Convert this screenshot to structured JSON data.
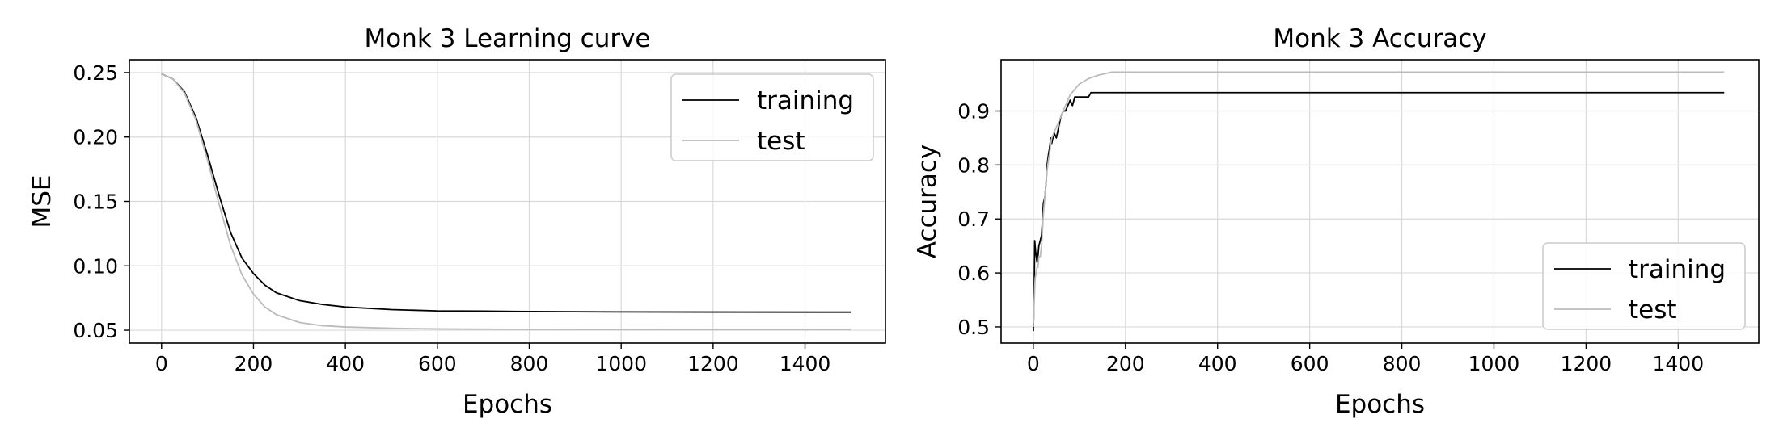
{
  "chart_data": [
    {
      "type": "line",
      "title": "Monk 3 Learning curve",
      "xlabel": "Epochs",
      "ylabel": "MSE",
      "xlim": [
        -70,
        1575
      ],
      "ylim": [
        0.04,
        0.26
      ],
      "xticks": [
        0,
        200,
        400,
        600,
        800,
        1000,
        1200,
        1400
      ],
      "yticks": [
        0.05,
        0.1,
        0.15,
        0.2,
        0.25
      ],
      "ytick_labels": [
        "0.05",
        "0.10",
        "0.15",
        "0.20",
        "0.25"
      ],
      "grid": true,
      "legend": "upper right",
      "series": [
        {
          "name": "training",
          "color": "#000000",
          "x": [
            0,
            25,
            50,
            75,
            100,
            125,
            150,
            175,
            200,
            225,
            250,
            300,
            350,
            400,
            500,
            600,
            700,
            800,
            1000,
            1200,
            1500
          ],
          "y": [
            0.249,
            0.245,
            0.235,
            0.215,
            0.186,
            0.155,
            0.126,
            0.106,
            0.094,
            0.085,
            0.079,
            0.073,
            0.07,
            0.068,
            0.066,
            0.065,
            0.0648,
            0.0645,
            0.0642,
            0.0641,
            0.064
          ]
        },
        {
          "name": "test",
          "color": "#bbbbbb",
          "x": [
            0,
            25,
            50,
            75,
            100,
            125,
            150,
            175,
            200,
            225,
            250,
            300,
            350,
            400,
            500,
            600,
            700,
            800,
            1000,
            1200,
            1500
          ],
          "y": [
            0.249,
            0.245,
            0.234,
            0.213,
            0.182,
            0.148,
            0.116,
            0.093,
            0.078,
            0.068,
            0.062,
            0.056,
            0.0535,
            0.0525,
            0.0515,
            0.051,
            0.0508,
            0.0507,
            0.0506,
            0.0505,
            0.0505
          ]
        }
      ]
    },
    {
      "type": "line",
      "title": "Monk 3 Accuracy",
      "xlabel": "Epochs",
      "ylabel": "Accuracy",
      "xlim": [
        -70,
        1575
      ],
      "ylim": [
        0.47,
        0.995
      ],
      "xticks": [
        0,
        200,
        400,
        600,
        800,
        1000,
        1200,
        1400
      ],
      "yticks": [
        0.5,
        0.6,
        0.7,
        0.8,
        0.9
      ],
      "ytick_labels": [
        "0.5",
        "0.6",
        "0.7",
        "0.8",
        "0.9"
      ],
      "grid": true,
      "legend": "lower right",
      "series": [
        {
          "name": "training",
          "color": "#000000",
          "x": [
            0,
            1,
            2,
            3,
            5,
            8,
            10,
            12,
            15,
            18,
            20,
            22,
            25,
            28,
            30,
            33,
            35,
            38,
            40,
            45,
            50,
            55,
            60,
            65,
            70,
            75,
            80,
            85,
            90,
            100,
            110,
            120,
            125,
            1500
          ],
          "y": [
            0.492,
            0.53,
            0.57,
            0.66,
            0.64,
            0.62,
            0.63,
            0.65,
            0.66,
            0.67,
            0.7,
            0.73,
            0.74,
            0.77,
            0.8,
            0.82,
            0.83,
            0.85,
            0.84,
            0.86,
            0.85,
            0.87,
            0.89,
            0.9,
            0.9,
            0.91,
            0.92,
            0.91,
            0.926,
            0.926,
            0.926,
            0.926,
            0.934,
            0.934
          ]
        },
        {
          "name": "test",
          "color": "#bbbbbb",
          "x": [
            0,
            2,
            4,
            6,
            8,
            10,
            12,
            15,
            18,
            20,
            22,
            25,
            28,
            30,
            33,
            35,
            38,
            40,
            45,
            50,
            55,
            60,
            65,
            70,
            75,
            80,
            90,
            100,
            110,
            120,
            130,
            140,
            150,
            160,
            170,
            1500
          ],
          "y": [
            0.5,
            0.55,
            0.59,
            0.6,
            0.61,
            0.61,
            0.63,
            0.63,
            0.65,
            0.68,
            0.71,
            0.74,
            0.77,
            0.79,
            0.81,
            0.82,
            0.84,
            0.85,
            0.86,
            0.87,
            0.88,
            0.89,
            0.9,
            0.91,
            0.92,
            0.93,
            0.94,
            0.95,
            0.955,
            0.96,
            0.963,
            0.966,
            0.968,
            0.97,
            0.972,
            0.972
          ]
        }
      ]
    }
  ]
}
